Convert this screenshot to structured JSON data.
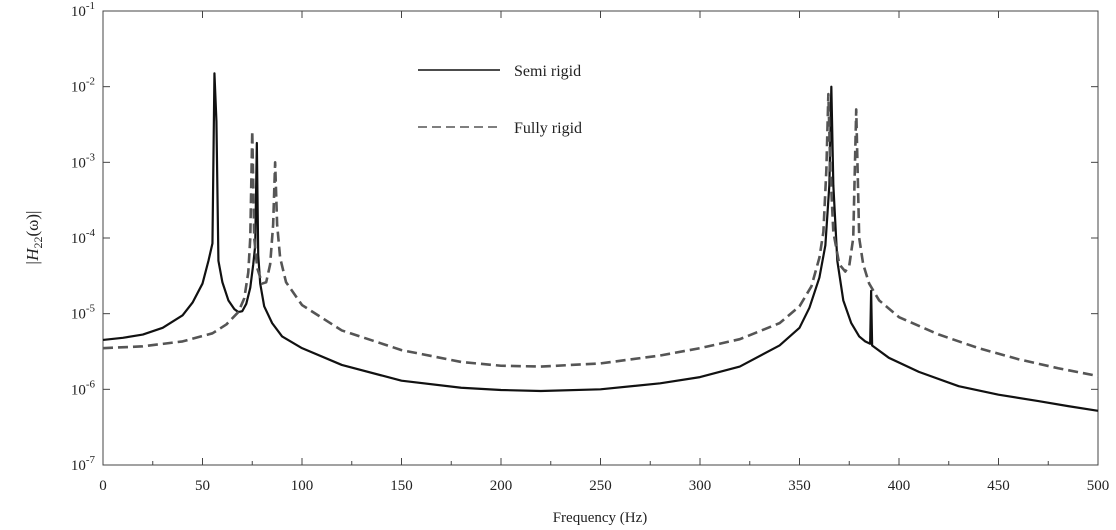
{
  "chart_data": {
    "type": "line",
    "title": "",
    "xlabel": "Frequency (Hz)",
    "ylabel_parts": {
      "pre": "|H",
      "sub": "22",
      "post": "(ω)|"
    },
    "xlim": [
      0,
      500
    ],
    "ylim_exponents": [
      -7,
      -1
    ],
    "yscale": "log",
    "grid": false,
    "legend_position": "top-center",
    "x_ticks": [
      "0",
      "50",
      "100",
      "150",
      "200",
      "250",
      "300",
      "350",
      "400",
      "450",
      "500"
    ],
    "y_ticks": [
      {
        "base": "10",
        "exp": "-1"
      },
      {
        "base": "10",
        "exp": "-2"
      },
      {
        "base": "10",
        "exp": "-3"
      },
      {
        "base": "10",
        "exp": "-4"
      },
      {
        "base": "10",
        "exp": "-5"
      },
      {
        "base": "10",
        "exp": "-6"
      },
      {
        "base": "10",
        "exp": "-7"
      }
    ],
    "series": [
      {
        "name": "Semi rigid",
        "style": "solid",
        "color": "#111111",
        "points": [
          [
            0,
            4.5e-06
          ],
          [
            10,
            4.8e-06
          ],
          [
            20,
            5.3e-06
          ],
          [
            30,
            6.5e-06
          ],
          [
            40,
            9.5e-06
          ],
          [
            45,
            1.4e-05
          ],
          [
            50,
            2.5e-05
          ],
          [
            53,
            5e-05
          ],
          [
            55,
            8.5e-05
          ],
          [
            56,
            0.015
          ],
          [
            57,
            0.0035
          ],
          [
            58,
            5e-05
          ],
          [
            60,
            2.6e-05
          ],
          [
            63,
            1.5e-05
          ],
          [
            66,
            1.15e-05
          ],
          [
            68,
            1.05e-05
          ],
          [
            70,
            1.08e-05
          ],
          [
            72,
            1.35e-05
          ],
          [
            74,
            2.2e-05
          ],
          [
            75.5,
            4.5e-05
          ],
          [
            76.5,
            8e-05
          ],
          [
            77.3,
            0.0018
          ],
          [
            78,
            6e-05
          ],
          [
            79,
            2.5e-05
          ],
          [
            81,
            1.25e-05
          ],
          [
            85,
            7.5e-06
          ],
          [
            90,
            5e-06
          ],
          [
            100,
            3.5e-06
          ],
          [
            120,
            2.1e-06
          ],
          [
            150,
            1.3e-06
          ],
          [
            180,
            1.05e-06
          ],
          [
            200,
            9.8e-07
          ],
          [
            220,
            9.5e-07
          ],
          [
            250,
            1e-06
          ],
          [
            280,
            1.2e-06
          ],
          [
            300,
            1.45e-06
          ],
          [
            320,
            2e-06
          ],
          [
            340,
            3.8e-06
          ],
          [
            350,
            6.5e-06
          ],
          [
            355,
            1.2e-05
          ],
          [
            360,
            3e-05
          ],
          [
            363,
            8e-05
          ],
          [
            365,
            0.0005
          ],
          [
            366,
            0.01
          ],
          [
            367,
            0.0005
          ],
          [
            369,
            5e-05
          ],
          [
            372,
            1.5e-05
          ],
          [
            376,
            7.5e-06
          ],
          [
            380,
            5e-06
          ],
          [
            383,
            4.3e-06
          ],
          [
            385.5,
            4e-06
          ],
          [
            386,
            2e-05
          ],
          [
            386.5,
            3.8e-06
          ],
          [
            395,
            2.6e-06
          ],
          [
            410,
            1.7e-06
          ],
          [
            430,
            1.1e-06
          ],
          [
            450,
            8.5e-07
          ],
          [
            470,
            7e-07
          ],
          [
            485,
            6e-07
          ],
          [
            500,
            5.2e-07
          ]
        ]
      },
      {
        "name": "Fully rigid",
        "style": "dashed",
        "color": "#555555",
        "points": [
          [
            0,
            3.5e-06
          ],
          [
            20,
            3.7e-06
          ],
          [
            40,
            4.3e-06
          ],
          [
            55,
            5.5e-06
          ],
          [
            62,
            7.2e-06
          ],
          [
            68,
            1.05e-05
          ],
          [
            71,
            1.6e-05
          ],
          [
            73,
            3.5e-05
          ],
          [
            74,
            0.0001
          ],
          [
            75,
            0.0026
          ],
          [
            76,
            0.0001
          ],
          [
            77.5,
            4e-05
          ],
          [
            80,
            2.5e-05
          ],
          [
            82,
            2.6e-05
          ],
          [
            84,
            4.5e-05
          ],
          [
            85.5,
            0.00015
          ],
          [
            86.5,
            0.001
          ],
          [
            87.5,
            0.00015
          ],
          [
            89,
            5.5e-05
          ],
          [
            92,
            2.6e-05
          ],
          [
            100,
            1.3e-05
          ],
          [
            120,
            6e-06
          ],
          [
            150,
            3.3e-06
          ],
          [
            180,
            2.3e-06
          ],
          [
            200,
            2.05e-06
          ],
          [
            220,
            2e-06
          ],
          [
            250,
            2.2e-06
          ],
          [
            280,
            2.8e-06
          ],
          [
            300,
            3.5e-06
          ],
          [
            320,
            4.6e-06
          ],
          [
            340,
            7.5e-06
          ],
          [
            350,
            1.25e-05
          ],
          [
            356,
            2.3e-05
          ],
          [
            360,
            5.5e-05
          ],
          [
            362,
            0.00012
          ],
          [
            363.5,
            0.0008
          ],
          [
            364.5,
            0.008
          ],
          [
            365.5,
            0.0008
          ],
          [
            367,
            0.00012
          ],
          [
            370,
            4.5e-05
          ],
          [
            373,
            3.6e-05
          ],
          [
            375,
            4.3e-05
          ],
          [
            377,
            0.0001
          ],
          [
            378.5,
            0.005
          ],
          [
            380,
            0.0001
          ],
          [
            382,
            4.5e-05
          ],
          [
            385,
            2.5e-05
          ],
          [
            390,
            1.5e-05
          ],
          [
            400,
            9e-06
          ],
          [
            420,
            5.3e-06
          ],
          [
            440,
            3.5e-06
          ],
          [
            460,
            2.5e-06
          ],
          [
            480,
            1.9e-06
          ],
          [
            500,
            1.5e-06
          ]
        ]
      }
    ]
  }
}
